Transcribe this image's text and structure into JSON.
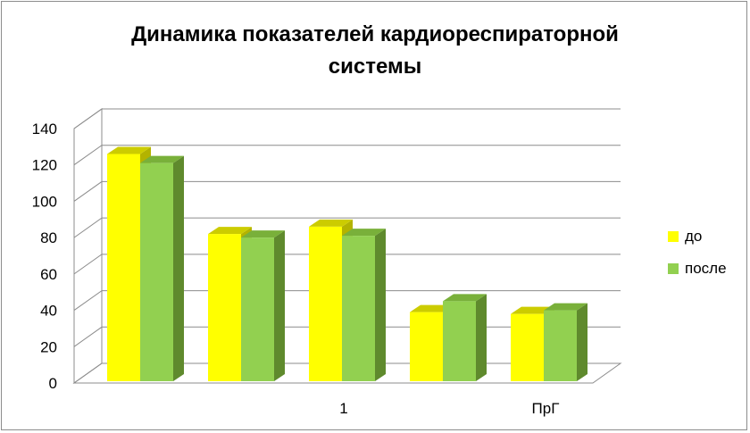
{
  "chart_data": {
    "type": "bar",
    "title_lines": [
      "Динамика показателей кардиореспираторной",
      "системы"
    ],
    "categories": [
      "",
      "",
      "1",
      "",
      "ПрГ"
    ],
    "series": [
      {
        "name": "до",
        "values": [
          126,
          82,
          86,
          39,
          38
        ],
        "color": "#ffff00",
        "top_color": "#cccc00",
        "side_color": "#b3b300"
      },
      {
        "name": "после",
        "values": [
          121,
          80,
          81,
          45,
          40
        ],
        "color": "#92d050",
        "top_color": "#79b03a",
        "side_color": "#5f8a2d"
      }
    ],
    "ylim": [
      0,
      140
    ],
    "yticks": [
      0,
      20,
      40,
      60,
      80,
      100,
      120,
      140
    ],
    "grid": true,
    "three_d": true,
    "legend_position": "right"
  }
}
